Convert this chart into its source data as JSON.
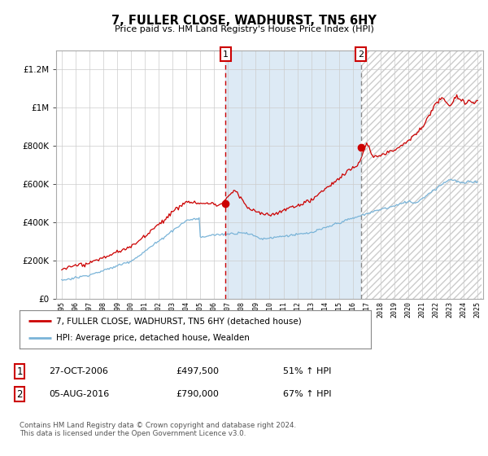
{
  "title": "7, FULLER CLOSE, WADHURST, TN5 6HY",
  "subtitle": "Price paid vs. HM Land Registry's House Price Index (HPI)",
  "legend_line1": "7, FULLER CLOSE, WADHURST, TN5 6HY (detached house)",
  "legend_line2": "HPI: Average price, detached house, Wealden",
  "transaction1_date": "27-OCT-2006",
  "transaction1_price": "£497,500",
  "transaction1_hpi": "51% ↑ HPI",
  "transaction2_date": "05-AUG-2016",
  "transaction2_price": "£790,000",
  "transaction2_hpi": "67% ↑ HPI",
  "footer": "Contains HM Land Registry data © Crown copyright and database right 2024.\nThis data is licensed under the Open Government Licence v3.0.",
  "hpi_color": "#7ab4d8",
  "price_color": "#cc0000",
  "transaction1_line_color": "#cc0000",
  "transaction2_line_color": "#888888",
  "shade_color": "#ddeaf5",
  "ylim_max": 1300000,
  "ylim_min": 0,
  "transaction1_year": 2006.83,
  "transaction1_value": 497500,
  "transaction2_year": 2016.58,
  "transaction2_value": 790000
}
